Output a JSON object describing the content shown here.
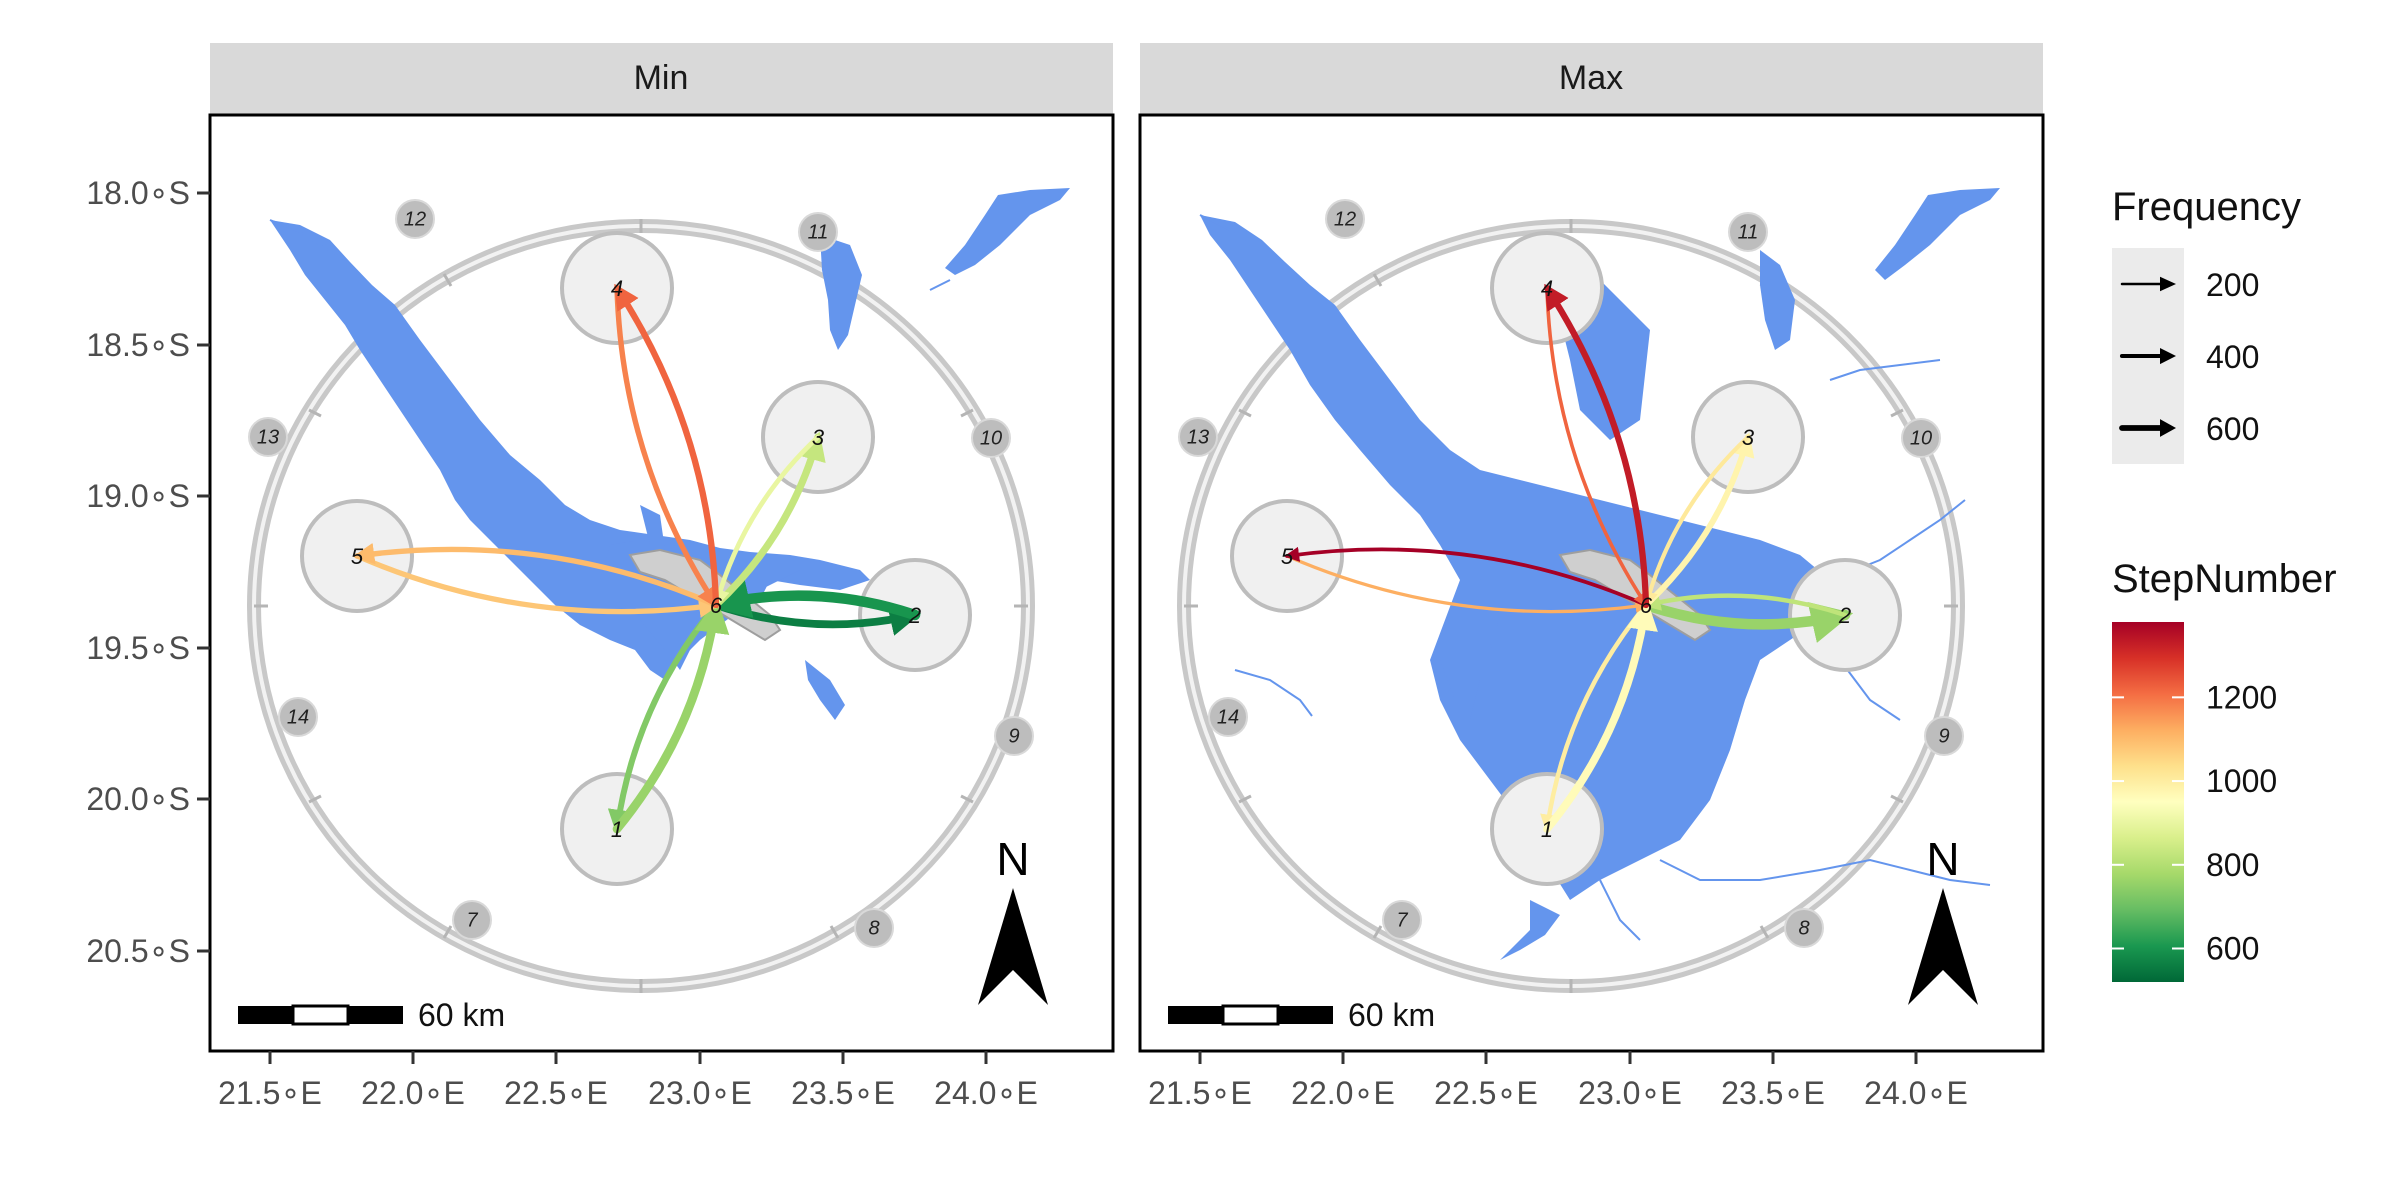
{
  "colors": {
    "water": "#6495ed",
    "ring": "#c8c8c8",
    "point_fill": "#f0f0f0",
    "strip": "#d9d9d9"
  },
  "axes": {
    "y_ticks": [
      "18.0∘S",
      "18.5∘S",
      "19.0∘S",
      "19.5∘S",
      "20.0∘S",
      "20.5∘S"
    ],
    "x_ticks": [
      "21.5∘E",
      "22.0∘E",
      "22.5∘E",
      "23.0∘E",
      "23.5∘E",
      "24.0∘E"
    ]
  },
  "panels": [
    {
      "title": "Min",
      "scalebar_label": "60 km",
      "north_label": "N",
      "point_labels": [
        "1",
        "2",
        "3",
        "4",
        "5",
        "6"
      ],
      "ring_labels": [
        "7",
        "8",
        "9",
        "10",
        "11",
        "12",
        "13",
        "14"
      ],
      "flows": [
        {
          "from": "6",
          "to": "2",
          "step": 560,
          "frequency": 420
        },
        {
          "from": "2",
          "to": "6",
          "step": 600,
          "frequency": 600
        },
        {
          "from": "6",
          "to": "1",
          "step": 730,
          "frequency": 300
        },
        {
          "from": "1",
          "to": "6",
          "step": 760,
          "frequency": 480
        },
        {
          "from": "6",
          "to": "3",
          "step": 830,
          "frequency": 380
        },
        {
          "from": "3",
          "to": "6",
          "step": 900,
          "frequency": 220
        },
        {
          "from": "5",
          "to": "6",
          "step": 1080,
          "frequency": 250
        },
        {
          "from": "6",
          "to": "5",
          "step": 1100,
          "frequency": 260
        },
        {
          "from": "4",
          "to": "6",
          "step": 1180,
          "frequency": 260
        },
        {
          "from": "6",
          "to": "4",
          "step": 1220,
          "frequency": 320
        }
      ]
    },
    {
      "title": "Max",
      "scalebar_label": "60 km",
      "north_label": "N",
      "point_labels": [
        "1",
        "2",
        "3",
        "4",
        "5",
        "6"
      ],
      "ring_labels": [
        "7",
        "8",
        "9",
        "10",
        "11",
        "12",
        "13",
        "14"
      ],
      "flows": [
        {
          "from": "6",
          "to": "2",
          "step": 760,
          "frequency": 600
        },
        {
          "from": "2",
          "to": "6",
          "step": 820,
          "frequency": 200
        },
        {
          "from": "6",
          "to": "1",
          "step": 1000,
          "frequency": 200
        },
        {
          "from": "1",
          "to": "6",
          "step": 960,
          "frequency": 420
        },
        {
          "from": "6",
          "to": "3",
          "step": 980,
          "frequency": 300
        },
        {
          "from": "3",
          "to": "6",
          "step": 1010,
          "frequency": 180
        },
        {
          "from": "5",
          "to": "6",
          "step": 1120,
          "frequency": 120
        },
        {
          "from": "6",
          "to": "5",
          "step": 1380,
          "frequency": 150
        },
        {
          "from": "4",
          "to": "6",
          "step": 1220,
          "frequency": 140
        },
        {
          "from": "6",
          "to": "4",
          "step": 1330,
          "frequency": 320
        }
      ]
    }
  ],
  "legend": {
    "frequency": {
      "title": "Frequency",
      "items": [
        {
          "label": "200",
          "value": 200
        },
        {
          "label": "400",
          "value": 400
        },
        {
          "label": "600",
          "value": 600
        }
      ]
    },
    "stepnumber": {
      "title": "StepNumber",
      "labels": [
        "1200",
        "1000",
        "800",
        "600"
      ],
      "values": [
        1200,
        1000,
        800,
        600
      ],
      "range": [
        520,
        1380
      ],
      "colors": [
        "#006837",
        "#1a9850",
        "#66bd63",
        "#a6d96a",
        "#d9ef8b",
        "#ffffbf",
        "#fee08b",
        "#fdae61",
        "#f46d43",
        "#d73027",
        "#a50026"
      ]
    }
  }
}
